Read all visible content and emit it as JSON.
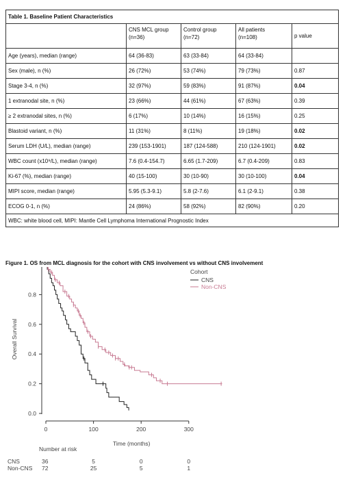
{
  "table": {
    "title": "Table 1. Baseline Patient Characteristics",
    "headers": [
      "",
      "CNS MCL group\n(n=36)",
      "Control group\n(n=72)",
      "All patients\n(n=108)",
      "p value"
    ],
    "rows": [
      {
        "label": "Age (years), median (range)",
        "cns": "64 (36-83)",
        "control": "63 (33-84)",
        "all": "64 (33-84)",
        "p": "",
        "p_bold": false
      },
      {
        "label": "Sex (male), n (%)",
        "cns": "26 (72%)",
        "control": "53 (74%)",
        "all": "79 (73%)",
        "p": "0.87",
        "p_bold": false
      },
      {
        "label": "Stage 3-4, n (%)",
        "cns": "32 (97%)",
        "control": "59 (83%)",
        "all": "91 (87%)",
        "p": "0.04",
        "p_bold": true
      },
      {
        "label": "1 extranodal site, n (%)",
        "cns": "23 (66%)",
        "control": "44 (61%)",
        "all": "67 (63%)",
        "p": "0.39",
        "p_bold": false
      },
      {
        "label": "≥ 2 extranodal sites, n (%)",
        "cns": "6 (17%)",
        "control": "10 (14%)",
        "all": "16 (15%)",
        "p": "0.25",
        "p_bold": false
      },
      {
        "label": "Blastoid variant, n (%)",
        "cns": "11 (31%)",
        "control": "8 (11%)",
        "all": "19 (18%)",
        "p": "0.02",
        "p_bold": true
      },
      {
        "label": "Serum LDH (U/L), median (range)",
        "cns": "239 (153-1901)",
        "control": "187 (124-588)",
        "all": "210 (124-1901)",
        "p": "0.02",
        "p_bold": true
      },
      {
        "label": "WBC count (x10⁹/L), median (range)",
        "cns": "7.6 (0.4-154.7)",
        "control": "6.65 (1.7-209)",
        "all": "6.7 (0.4-209)",
        "p": "0.83",
        "p_bold": false
      },
      {
        "label": "Ki-67 (%), median (range)",
        "cns": "40 (15-100)",
        "control": "30 (10-90)",
        "all": "30 (10-100)",
        "p": "0.04",
        "p_bold": true
      },
      {
        "label": "MIPI score, median (range)",
        "cns": "5.95 (5.3-9.1)",
        "control": "5.8 (2-7.6)",
        "all": "6.1 (2-9.1)",
        "p": "0.38",
        "p_bold": false
      },
      {
        "label": "ECOG 0-1, n (%)",
        "cns": "24 (86%)",
        "control": "58 (92%)",
        "all": "82 (90%)",
        "p": "0.20",
        "p_bold": false
      }
    ],
    "footnote": "WBC: white blood cell, MIPI: Mantle Cell Lymphoma International Prognostic Index"
  },
  "figure": {
    "caption": "Figure 1. OS from MCL diagnosis for the cohort with CNS involvement vs without CNS involvement",
    "legend_title": "Cohort",
    "risk_title": "Number at risk"
  },
  "chart_data": {
    "type": "line",
    "xlabel": "Time (months)",
    "ylabel": "Overall Survival",
    "xlim": [
      0,
      370
    ],
    "ylim": [
      0,
      1.0
    ],
    "x_ticks": [
      0,
      100,
      200,
      300
    ],
    "y_ticks": [
      0.0,
      0.2,
      0.4,
      0.6,
      0.8,
      1.0
    ],
    "y_tick_labels": [
      "0.0",
      "0.2",
      "0.4",
      "0.6",
      "0.8",
      "1.0"
    ],
    "legend_position": "top-right",
    "series": [
      {
        "name": "CNS",
        "color": "#222222",
        "steps": [
          [
            0,
            1.0
          ],
          [
            3,
            0.97
          ],
          [
            6,
            0.94
          ],
          [
            9,
            0.91
          ],
          [
            12,
            0.88
          ],
          [
            15,
            0.86
          ],
          [
            18,
            0.83
          ],
          [
            21,
            0.8
          ],
          [
            24,
            0.77
          ],
          [
            27,
            0.74
          ],
          [
            31,
            0.71
          ],
          [
            34,
            0.69
          ],
          [
            37,
            0.66
          ],
          [
            41,
            0.63
          ],
          [
            44,
            0.6
          ],
          [
            48,
            0.57
          ],
          [
            52,
            0.55
          ],
          [
            55,
            0.55
          ],
          [
            62,
            0.52
          ],
          [
            66,
            0.49
          ],
          [
            70,
            0.46
          ],
          [
            74,
            0.4
          ],
          [
            78,
            0.37
          ],
          [
            82,
            0.34
          ],
          [
            88,
            0.29
          ],
          [
            92,
            0.26
          ],
          [
            96,
            0.23
          ],
          [
            105,
            0.2
          ],
          [
            122,
            0.2
          ],
          [
            126,
            0.17
          ],
          [
            128,
            0.14
          ],
          [
            132,
            0.11
          ],
          [
            146,
            0.11
          ],
          [
            154,
            0.08
          ],
          [
            164,
            0.06
          ],
          [
            170,
            0.04
          ],
          [
            174,
            0.02
          ]
        ],
        "end_x": 174,
        "censor_x": [
          80,
          120
        ]
      },
      {
        "name": "Non-CNS",
        "color": "#c87a92",
        "steps": [
          [
            0,
            1.0
          ],
          [
            4,
            0.97
          ],
          [
            9,
            0.95
          ],
          [
            14,
            0.93
          ],
          [
            18,
            0.9
          ],
          [
            24,
            0.88
          ],
          [
            30,
            0.86
          ],
          [
            36,
            0.82
          ],
          [
            44,
            0.79
          ],
          [
            50,
            0.77
          ],
          [
            54,
            0.75
          ],
          [
            58,
            0.73
          ],
          [
            62,
            0.71
          ],
          [
            66,
            0.69
          ],
          [
            70,
            0.66
          ],
          [
            74,
            0.64
          ],
          [
            78,
            0.61
          ],
          [
            82,
            0.58
          ],
          [
            86,
            0.55
          ],
          [
            92,
            0.52
          ],
          [
            98,
            0.5
          ],
          [
            104,
            0.48
          ],
          [
            110,
            0.45
          ],
          [
            118,
            0.43
          ],
          [
            126,
            0.41
          ],
          [
            136,
            0.39
          ],
          [
            146,
            0.37
          ],
          [
            156,
            0.35
          ],
          [
            162,
            0.33
          ],
          [
            166,
            0.32
          ],
          [
            174,
            0.31
          ],
          [
            186,
            0.29
          ],
          [
            198,
            0.28
          ],
          [
            216,
            0.26
          ],
          [
            226,
            0.24
          ],
          [
            232,
            0.22
          ],
          [
            244,
            0.2
          ]
        ],
        "end_x": 370,
        "censor_x": [
          5,
          12,
          20,
          28,
          40,
          48,
          58,
          68,
          72,
          80,
          88,
          94,
          110,
          124,
          132,
          140,
          146,
          152,
          165,
          175,
          180,
          222,
          240,
          255,
          368
        ]
      }
    ],
    "risk_table": {
      "times": [
        0,
        100,
        200,
        300
      ],
      "rows": [
        {
          "label": "CNS",
          "values": [
            "36",
            "5",
            "0",
            "0"
          ]
        },
        {
          "label": "Non-CNS",
          "values": [
            "72",
            "25",
            "5",
            "1"
          ]
        }
      ]
    }
  }
}
